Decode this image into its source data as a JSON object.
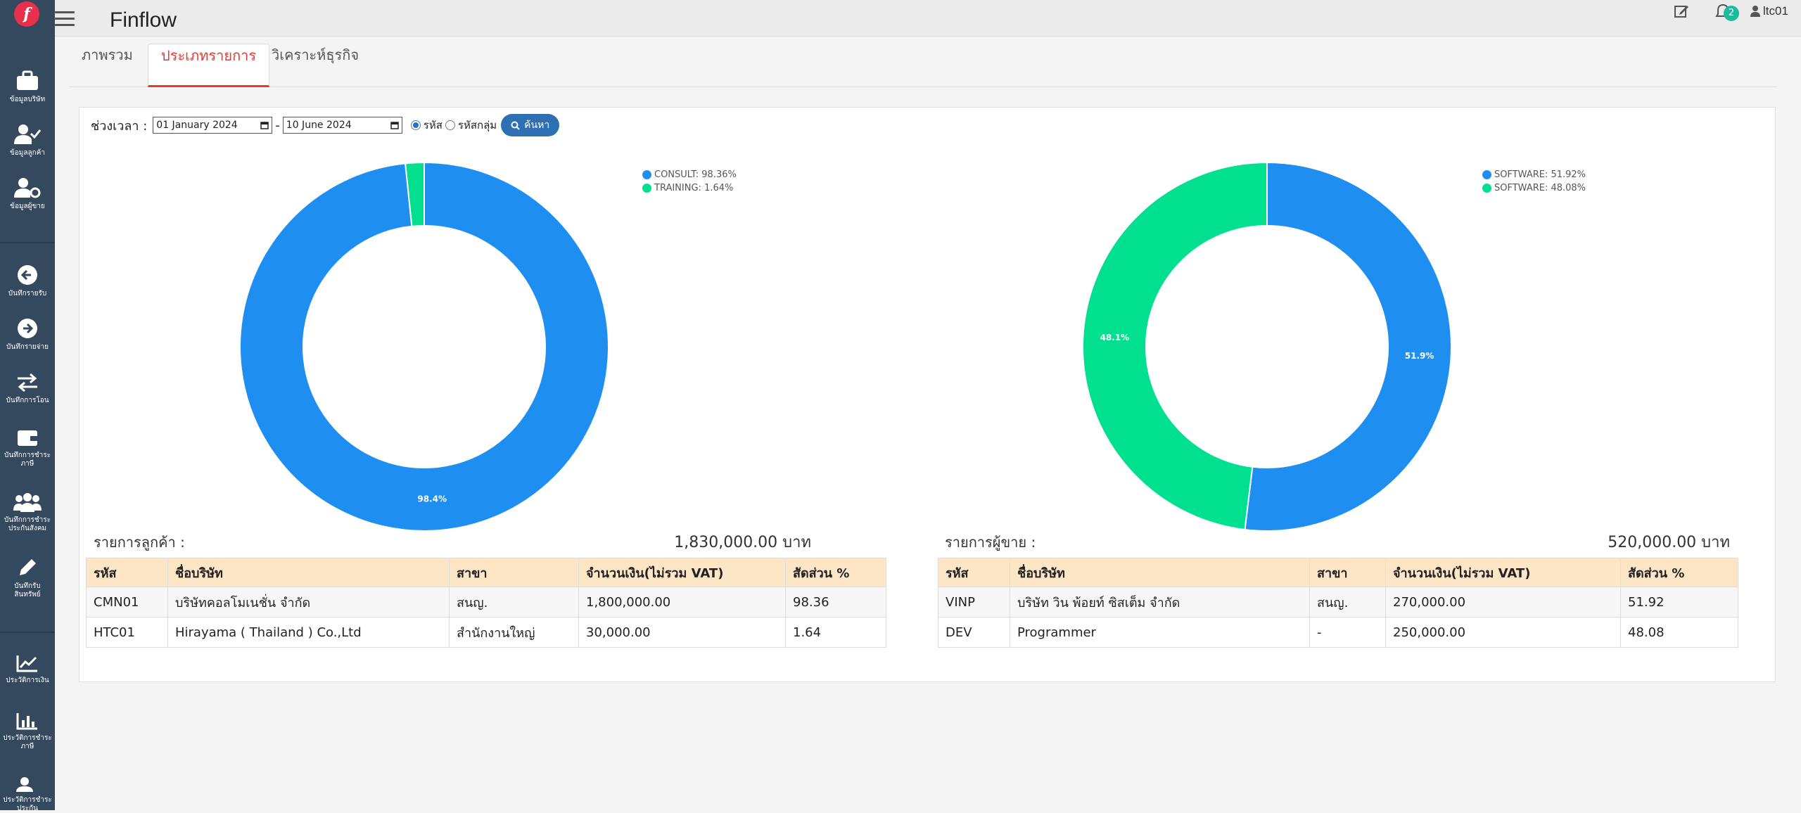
{
  "app": {
    "title": "Finflow",
    "logo_letter": "f"
  },
  "topbar": {
    "notification_count": "2",
    "user": "ltc01"
  },
  "sidebar": {
    "items": [
      {
        "icon": "briefcase-icon",
        "label": "ข้อมูลบริษัท"
      },
      {
        "icon": "user-check-icon",
        "label": "ข้อมูลลูกค้า"
      },
      {
        "icon": "user-gear-icon",
        "label": "ข้อมูลผู้ขาย"
      },
      {
        "icon": "arrow-left-circle-icon",
        "label": "บันทึกรายรับ"
      },
      {
        "icon": "arrow-right-circle-icon",
        "label": "บันทึกรายจ่าย"
      },
      {
        "icon": "exchange-icon",
        "label": "บันทึกการโอน"
      },
      {
        "icon": "wallet-icon",
        "label": "บันทึกการชำระภาษี"
      },
      {
        "icon": "users-icon",
        "label": "บันทึกการชำระประกันสังคม"
      },
      {
        "icon": "pen-icon",
        "label": "บันทึกรับสินทรัพย์"
      },
      {
        "icon": "line-chart-icon",
        "label": "ประวัติการเงิน"
      },
      {
        "icon": "bar-chart-icon",
        "label": "ประวัติการชำระภาษี"
      },
      {
        "icon": "user-history-icon",
        "label": "ประวัติการชำระประกัน"
      }
    ]
  },
  "tabs": [
    {
      "label": "ภาพรวม"
    },
    {
      "label": "ประเภทรายการ"
    },
    {
      "label": "วิเคราะห์ธุรกิจ"
    }
  ],
  "filter": {
    "label": "ช่วงเวลา :",
    "date_from": "01 January 2024",
    "date_sep": "-",
    "date_to": "10 June 2024",
    "radio_code": "รหัส",
    "radio_group": "รหัสกลุ่ม",
    "search_label": "ค้นหา"
  },
  "chart_data": [
    {
      "type": "pie",
      "series": [
        {
          "name": "CONSULT",
          "value": 98.36,
          "color": "#1f8ef1"
        },
        {
          "name": "TRAINING",
          "value": 1.64,
          "color": "#00e08e"
        }
      ],
      "legend": [
        "CONSULT: 98.36%",
        "TRAINING: 1.64%"
      ],
      "data_labels": [
        "98.4%"
      ]
    },
    {
      "type": "pie",
      "series": [
        {
          "name": "SOFTWARE",
          "value": 51.92,
          "color": "#1f8ef1"
        },
        {
          "name": "SOFTWARE",
          "value": 48.08,
          "color": "#00e08e"
        }
      ],
      "legend": [
        "SOFTWARE: 51.92%",
        "SOFTWARE: 48.08%"
      ],
      "data_labels": [
        "51.9%",
        "48.1%"
      ]
    }
  ],
  "customers": {
    "title": "รายการลูกค้า :",
    "total": "1,830,000.00  บาท",
    "headers": [
      "รหัส",
      "ชื่อบริษัท",
      "สาขา",
      "จำนวนเงิน(ไม่รวม VAT)",
      "สัดส่วน %"
    ],
    "rows": [
      [
        "CMN01",
        "บริษัทคอลโมเนชั่น จำกัด",
        "สนญ.",
        "1,800,000.00",
        "98.36"
      ],
      [
        "HTC01",
        "Hirayama ( Thailand ) Co.,Ltd",
        "สำนักงานใหญ่",
        "30,000.00",
        "1.64"
      ]
    ]
  },
  "vendors": {
    "title": "รายการผู้ขาย :",
    "total": "520,000.00  บาท",
    "headers": [
      "รหัส",
      "ชื่อบริษัท",
      "สาขา",
      "จำนวนเงิน(ไม่รวม VAT)",
      "สัดส่วน %"
    ],
    "rows": [
      [
        "VINP",
        "บริษัท วิน พ้อยท์ ซิสเต็ม จำกัด",
        "สนญ.",
        "270,000.00",
        "51.92"
      ],
      [
        "DEV",
        "Programmer",
        "-",
        "250,000.00",
        "48.08"
      ]
    ]
  }
}
